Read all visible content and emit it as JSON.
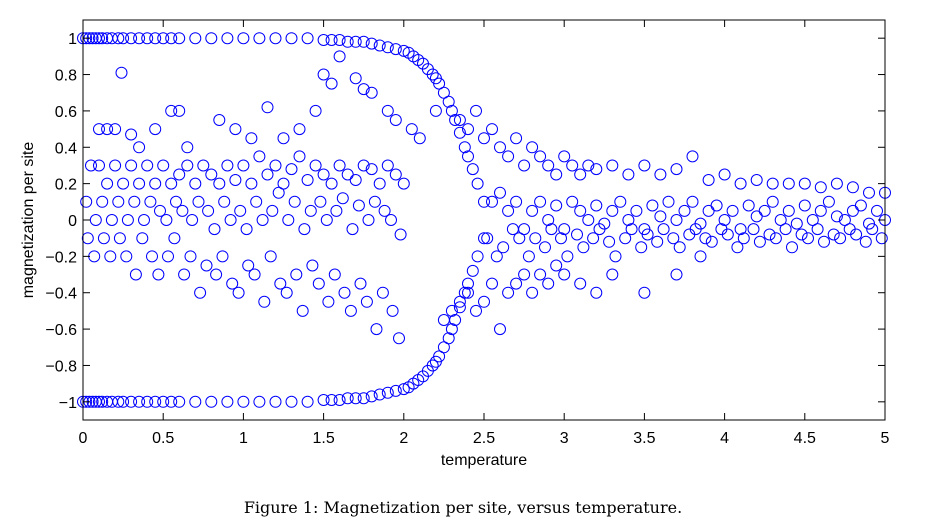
{
  "caption": "Figure 1: Magnetization per site, versus temperature.",
  "chart_data": {
    "type": "scatter",
    "title": "",
    "xlabel": "temperature",
    "ylabel": "magnetization per site",
    "xlim": [
      0,
      5
    ],
    "ylim": [
      -1.1,
      1.1
    ],
    "xticks": [
      0,
      0.5,
      1,
      1.5,
      2,
      2.5,
      3,
      3.5,
      4,
      4.5,
      5
    ],
    "xtick_labels": [
      "0",
      "0.5",
      "1",
      "1.5",
      "2",
      "2.5",
      "3",
      "3.5",
      "4",
      "4.5",
      "5"
    ],
    "yticks": [
      -1,
      -0.8,
      -0.6,
      -0.4,
      -0.2,
      0,
      0.2,
      0.4,
      0.6,
      0.8,
      1
    ],
    "ytick_labels": [
      "−1",
      "−0.8",
      "−0.6",
      "−0.4",
      "−0.2",
      "0",
      "0.2",
      "0.4",
      "0.6",
      "0.8",
      "1"
    ],
    "grid": false,
    "legend": "none",
    "marker": "open-circle",
    "color": "#0000ff",
    "series": [
      {
        "x": [
          0.0,
          0.02,
          0.04,
          0.06,
          0.08,
          0.1,
          0.12,
          0.15,
          0.18,
          0.22,
          0.25,
          0.3,
          0.35,
          0.4,
          0.45,
          0.5,
          0.55,
          0.6,
          0.7,
          0.8,
          0.9,
          1.0,
          1.1,
          1.2,
          1.3,
          1.4,
          1.5,
          1.55,
          1.6,
          1.65,
          1.7,
          1.75,
          1.8,
          1.85,
          1.9,
          1.95,
          2.0,
          2.03,
          2.06,
          2.09,
          2.12,
          2.15,
          2.18,
          2.2,
          2.22,
          2.25,
          2.28,
          2.3,
          2.32,
          2.35,
          2.38,
          2.4,
          2.43,
          2.46,
          2.5,
          0.0,
          0.02,
          0.04,
          0.06,
          0.08,
          0.1,
          0.12,
          0.15,
          0.18,
          0.22,
          0.25,
          0.3,
          0.35,
          0.4,
          0.45,
          0.5,
          0.55,
          0.6,
          0.7,
          0.8,
          0.9,
          1.0,
          1.1,
          1.2,
          1.3,
          1.4,
          1.5,
          1.55,
          1.6,
          1.65,
          1.7,
          1.75,
          1.8,
          1.85,
          1.9,
          1.95,
          2.0,
          2.03,
          2.06,
          2.09,
          2.12,
          2.15,
          2.18,
          2.2,
          2.22,
          2.25,
          2.28,
          2.3,
          2.32,
          2.35,
          2.38,
          2.4,
          2.43,
          2.46,
          2.5,
          0.24,
          0.1,
          0.15,
          0.2,
          0.3,
          0.35,
          0.45,
          0.55,
          0.6,
          0.65,
          0.85,
          0.95,
          1.05,
          1.15,
          1.25,
          1.35,
          1.45,
          1.5,
          1.55,
          1.6,
          1.7,
          1.75,
          1.8,
          1.9,
          1.95,
          2.05,
          2.1,
          2.2,
          0.05,
          0.1,
          0.15,
          0.2,
          0.25,
          0.3,
          0.35,
          0.4,
          0.45,
          0.5,
          0.55,
          0.6,
          0.65,
          0.7,
          0.75,
          0.8,
          0.85,
          0.9,
          0.95,
          1.0,
          1.05,
          1.1,
          1.15,
          1.2,
          1.25,
          1.3,
          1.35,
          1.4,
          1.45,
          1.5,
          1.55,
          1.6,
          1.65,
          1.7,
          1.75,
          1.8,
          1.85,
          1.9,
          1.95,
          2.0,
          0.02,
          0.08,
          0.12,
          0.18,
          0.22,
          0.28,
          0.32,
          0.38,
          0.42,
          0.48,
          0.52,
          0.58,
          0.62,
          0.68,
          0.72,
          0.78,
          0.82,
          0.88,
          0.92,
          0.98,
          1.02,
          1.08,
          1.12,
          1.18,
          1.22,
          1.28,
          1.32,
          1.38,
          1.42,
          1.48,
          1.52,
          1.58,
          1.62,
          1.68,
          1.72,
          1.78,
          1.82,
          1.88,
          1.92,
          1.98,
          0.03,
          0.07,
          0.13,
          0.17,
          0.23,
          0.27,
          0.33,
          0.37,
          0.43,
          0.47,
          0.53,
          0.57,
          0.63,
          0.67,
          0.73,
          0.77,
          0.83,
          0.87,
          0.93,
          0.97,
          1.03,
          1.07,
          1.13,
          1.17,
          1.23,
          1.27,
          1.33,
          1.37,
          1.43,
          1.47,
          1.53,
          1.57,
          1.63,
          1.67,
          1.73,
          1.77,
          1.83,
          1.87,
          1.93,
          1.97,
          2.35,
          2.4,
          2.45,
          2.5,
          2.55,
          2.6,
          2.65,
          2.7,
          2.75,
          2.8,
          2.85,
          2.9,
          2.95,
          3.0,
          3.05,
          3.1,
          3.15,
          3.2,
          3.3,
          3.4,
          3.5,
          3.6,
          3.7,
          3.8,
          3.9,
          4.0,
          4.1,
          4.2,
          4.3,
          4.4,
          4.5,
          4.6,
          4.7,
          4.8,
          4.9,
          5.0,
          2.55,
          2.6,
          2.65,
          2.7,
          2.75,
          2.8,
          2.85,
          2.9,
          2.95,
          3.0,
          3.05,
          3.1,
          3.15,
          3.2,
          3.25,
          3.3,
          3.35,
          3.4,
          3.45,
          3.5,
          3.55,
          3.6,
          3.65,
          3.7,
          3.75,
          3.8,
          3.85,
          3.9,
          3.95,
          4.0,
          4.05,
          4.1,
          4.15,
          4.2,
          4.25,
          4.3,
          4.35,
          4.4,
          4.45,
          4.5,
          4.55,
          4.6,
          4.65,
          4.7,
          4.75,
          4.8,
          4.85,
          4.9,
          4.95,
          5.0,
          2.52,
          2.58,
          2.62,
          2.68,
          2.72,
          2.78,
          2.82,
          2.88,
          2.92,
          2.98,
          3.02,
          3.08,
          3.12,
          3.18,
          3.22,
          3.28,
          3.32,
          3.38,
          3.42,
          3.48,
          3.52,
          3.58,
          3.62,
          3.68,
          3.72,
          3.78,
          3.82,
          3.88,
          3.92,
          3.98,
          4.02,
          4.08,
          4.12,
          4.18,
          4.22,
          4.28,
          4.32,
          4.38,
          4.42,
          4.48,
          4.52,
          4.58,
          4.62,
          4.68,
          4.72,
          4.78,
          4.82,
          4.88,
          4.92,
          4.98,
          2.25,
          2.3,
          2.35,
          2.4,
          2.45,
          2.5,
          2.55,
          2.6,
          2.65,
          2.7,
          2.75,
          2.8,
          2.85,
          2.9,
          2.95,
          3.0,
          3.1,
          3.2,
          3.3,
          3.5,
          3.7,
          3.85
        ],
        "y": [
          1.0,
          1.0,
          1.0,
          1.0,
          1.0,
          1.0,
          1.0,
          1.0,
          1.0,
          1.0,
          1.0,
          1.0,
          1.0,
          1.0,
          1.0,
          1.0,
          1.0,
          1.0,
          1.0,
          1.0,
          1.0,
          1.0,
          1.0,
          1.0,
          1.0,
          1.0,
          0.99,
          0.99,
          0.99,
          0.98,
          0.98,
          0.98,
          0.97,
          0.96,
          0.95,
          0.94,
          0.93,
          0.92,
          0.9,
          0.88,
          0.86,
          0.83,
          0.8,
          0.78,
          0.75,
          0.7,
          0.65,
          0.6,
          0.55,
          0.48,
          0.4,
          0.35,
          0.28,
          0.2,
          0.1,
          -1.0,
          -1.0,
          -1.0,
          -1.0,
          -1.0,
          -1.0,
          -1.0,
          -1.0,
          -1.0,
          -1.0,
          -1.0,
          -1.0,
          -1.0,
          -1.0,
          -1.0,
          -1.0,
          -1.0,
          -1.0,
          -1.0,
          -1.0,
          -1.0,
          -1.0,
          -1.0,
          -1.0,
          -1.0,
          -1.0,
          -0.99,
          -0.99,
          -0.99,
          -0.98,
          -0.98,
          -0.98,
          -0.97,
          -0.96,
          -0.95,
          -0.94,
          -0.93,
          -0.92,
          -0.9,
          -0.88,
          -0.86,
          -0.83,
          -0.8,
          -0.78,
          -0.75,
          -0.7,
          -0.65,
          -0.6,
          -0.55,
          -0.48,
          -0.4,
          -0.35,
          -0.28,
          -0.2,
          -0.1,
          0.81,
          0.5,
          0.5,
          0.5,
          0.47,
          0.4,
          0.5,
          0.6,
          0.6,
          0.4,
          0.55,
          0.5,
          0.45,
          0.62,
          0.45,
          0.5,
          0.6,
          0.8,
          0.75,
          0.9,
          0.78,
          0.72,
          0.7,
          0.6,
          0.55,
          0.5,
          0.45,
          0.6,
          0.3,
          0.3,
          0.2,
          0.3,
          0.2,
          0.3,
          0.2,
          0.3,
          0.2,
          0.3,
          0.2,
          0.25,
          0.3,
          0.2,
          0.3,
          0.25,
          0.2,
          0.3,
          0.22,
          0.3,
          0.2,
          0.35,
          0.25,
          0.3,
          0.2,
          0.28,
          0.35,
          0.22,
          0.3,
          0.25,
          0.2,
          0.3,
          0.25,
          0.22,
          0.3,
          0.28,
          0.2,
          0.3,
          0.25,
          0.2,
          0.1,
          0.0,
          0.1,
          0.0,
          0.1,
          0.0,
          0.1,
          0.0,
          0.1,
          0.05,
          0.0,
          0.1,
          0.05,
          0.0,
          0.1,
          0.05,
          -0.05,
          0.1,
          0.0,
          0.05,
          -0.05,
          0.1,
          0.0,
          0.05,
          0.15,
          0.0,
          0.1,
          -0.05,
          0.05,
          0.1,
          0.0,
          0.05,
          0.12,
          -0.05,
          0.08,
          0.0,
          0.1,
          0.05,
          0.0,
          -0.08,
          -0.1,
          -0.2,
          -0.1,
          -0.2,
          -0.1,
          -0.2,
          -0.3,
          -0.1,
          -0.2,
          -0.3,
          -0.2,
          -0.1,
          -0.3,
          -0.2,
          -0.4,
          -0.25,
          -0.3,
          -0.2,
          -0.35,
          -0.4,
          -0.25,
          -0.3,
          -0.45,
          -0.2,
          -0.35,
          -0.4,
          -0.3,
          -0.5,
          -0.25,
          -0.35,
          -0.45,
          -0.3,
          -0.4,
          -0.5,
          -0.35,
          -0.45,
          -0.6,
          -0.4,
          -0.5,
          -0.65,
          0.55,
          0.5,
          0.6,
          0.45,
          0.5,
          0.4,
          0.35,
          0.45,
          0.3,
          0.4,
          0.35,
          0.3,
          0.25,
          0.35,
          0.3,
          0.25,
          0.3,
          0.28,
          0.3,
          0.25,
          0.3,
          0.25,
          0.28,
          0.35,
          0.22,
          0.25,
          0.2,
          0.22,
          0.2,
          0.2,
          0.2,
          0.18,
          0.2,
          0.18,
          0.15,
          0.15,
          0.1,
          0.15,
          0.05,
          0.1,
          -0.05,
          0.05,
          0.1,
          0.0,
          0.08,
          -0.05,
          0.1,
          0.05,
          0.0,
          0.08,
          -0.02,
          0.05,
          0.1,
          0.0,
          0.05,
          -0.05,
          0.08,
          0.02,
          0.1,
          0.0,
          0.05,
          0.1,
          -0.02,
          0.05,
          0.08,
          0.0,
          0.05,
          -0.05,
          0.08,
          0.02,
          0.05,
          0.1,
          0.0,
          0.05,
          -0.02,
          0.08,
          0.0,
          0.05,
          0.1,
          0.02,
          0.0,
          0.05,
          0.08,
          -0.02,
          0.05,
          0.0,
          -0.1,
          -0.2,
          -0.15,
          -0.05,
          -0.1,
          -0.2,
          -0.1,
          -0.15,
          -0.05,
          -0.1,
          -0.2,
          -0.08,
          -0.15,
          -0.1,
          -0.05,
          -0.12,
          -0.2,
          -0.1,
          -0.05,
          -0.15,
          -0.08,
          -0.12,
          -0.05,
          -0.1,
          -0.15,
          -0.08,
          -0.05,
          -0.1,
          -0.12,
          -0.05,
          -0.08,
          -0.15,
          -0.1,
          -0.05,
          -0.12,
          -0.08,
          -0.1,
          -0.05,
          -0.15,
          -0.08,
          -0.1,
          -0.05,
          -0.12,
          -0.08,
          -0.1,
          -0.05,
          -0.08,
          -0.12,
          -0.05,
          -0.1,
          -0.55,
          -0.5,
          -0.45,
          -0.4,
          -0.5,
          -0.45,
          -0.35,
          -0.6,
          -0.4,
          -0.35,
          -0.3,
          -0.4,
          -0.3,
          -0.35,
          -0.25,
          -0.3,
          -0.35,
          -0.4,
          -0.3,
          -0.4,
          -0.3,
          -0.2
        ]
      }
    ]
  }
}
